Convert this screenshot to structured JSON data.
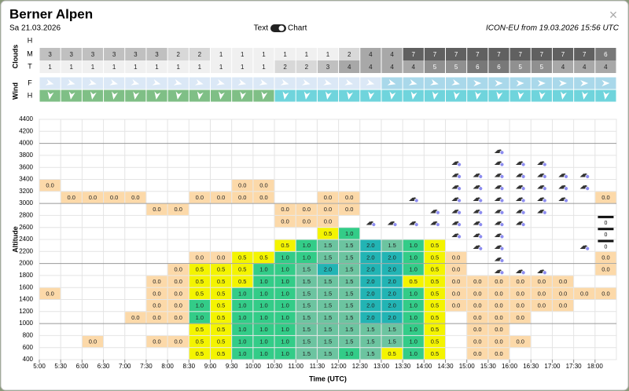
{
  "header": {
    "title": "Berner Alpen",
    "date": "Sa 21.03.2026",
    "toggle_left": "Text",
    "toggle_right": "Chart",
    "model": "ICON-EU from 19.03.2026 15:56 UTC",
    "close": "×"
  },
  "clouds": {
    "label": "Clouds",
    "rows": [
      {
        "name": "H"
      },
      {
        "name": "M",
        "values": [
          3,
          3,
          3,
          3,
          3,
          3,
          2,
          2,
          1,
          1,
          1,
          1,
          1,
          1,
          2,
          4,
          4,
          7,
          7,
          7,
          7,
          7,
          7,
          7,
          7,
          7,
          6
        ]
      },
      {
        "name": "T",
        "values": [
          1,
          1,
          1,
          1,
          1,
          1,
          1,
          1,
          1,
          1,
          1,
          2,
          2,
          3,
          4,
          4,
          4,
          4,
          5,
          5,
          6,
          6,
          5,
          5,
          4,
          4,
          4
        ]
      }
    ]
  },
  "wind": {
    "label": "Wind",
    "rows": [
      {
        "name": "F"
      },
      {
        "name": "H"
      }
    ]
  },
  "chart": {
    "type": "heatmap",
    "y_label": "Altitude",
    "x_label": "Time (UTC)",
    "yticks": [
      400,
      600,
      800,
      1000,
      1200,
      1400,
      1600,
      1800,
      2000,
      2200,
      2400,
      2600,
      2800,
      3000,
      3200,
      3400,
      3600,
      3800,
      4000,
      4200,
      4400
    ],
    "xticks": [
      "5:00",
      "5:30",
      "6:00",
      "6:30",
      "7:00",
      "7:30",
      "8:00",
      "8:30",
      "9:00",
      "9:30",
      "10:00",
      "10:30",
      "11:00",
      "11:30",
      "12:00",
      "12:30",
      "13:00",
      "13:30",
      "14:00",
      "14:30",
      "15:00",
      "15:30",
      "16:00",
      "16:30",
      "17:00",
      "17:30",
      "18:00"
    ],
    "cell_colors": [
      "#fcd9a9",
      "#f4f400",
      "#33cc88",
      "#6cc4a0",
      "#22b4b4"
    ],
    "rows": [
      [
        null,
        null,
        null,
        null,
        null,
        null,
        null,
        "0.5",
        "0.5",
        "1.0",
        "1.0",
        "1.0",
        "1.5",
        "1.5",
        "1.0",
        "1.5",
        "0.5",
        "1.0",
        "0.5",
        null,
        "0.0",
        "0.0",
        null,
        null,
        null,
        null,
        null
      ],
      [
        null,
        null,
        "0.0",
        null,
        null,
        "0.0",
        "0.0",
        "0.5",
        "0.5",
        "1.0",
        "1.0",
        "1.0",
        "1.5",
        "1.5",
        "1.5",
        "1.5",
        "1.5",
        "1.0",
        "0.5",
        null,
        "0.0",
        "0.0",
        "0.0",
        null,
        null,
        null,
        null
      ],
      [
        null,
        null,
        null,
        null,
        null,
        null,
        null,
        "0.5",
        "0.5",
        "1.0",
        "1.0",
        "1.0",
        "1.5",
        "1.5",
        "1.5",
        "1.5",
        "1.5",
        "1.0",
        "0.5",
        null,
        "0.0",
        "0.0",
        null,
        null,
        null,
        null,
        null
      ],
      [
        null,
        null,
        null,
        null,
        "0.0",
        "0.0",
        "0.0",
        "1.0",
        "0.5",
        "1.0",
        "1.0",
        "1.0",
        "1.5",
        "1.5",
        "1.5",
        "2.0",
        "2.0",
        "1.0",
        "0.5",
        null,
        "0.0",
        "0.0",
        "0.0",
        null,
        null,
        null,
        null
      ],
      [
        null,
        null,
        null,
        null,
        null,
        "0.0",
        "0.0",
        "1.0",
        "0.5",
        "1.0",
        "1.0",
        "1.0",
        "1.5",
        "1.5",
        "1.5",
        "2.0",
        "2.0",
        "1.0",
        "0.5",
        "0.0",
        "0.0",
        "0.0",
        "0.0",
        "0.0",
        "0.0",
        null,
        null
      ],
      [
        "0.0",
        null,
        null,
        null,
        null,
        "0.0",
        "0.0",
        "0.5",
        "0.5",
        "1.0",
        "1.0",
        "1.0",
        "1.5",
        "1.5",
        "1.5",
        "2.0",
        "2.0",
        "1.0",
        "0.5",
        "0.0",
        "0.0",
        "0.0",
        "0.0",
        "0.0",
        "0.0",
        "0.0",
        "0.0"
      ],
      [
        null,
        null,
        null,
        null,
        null,
        "0.0",
        "0.0",
        "0.5",
        "0.5",
        "0.5",
        "1.0",
        "1.0",
        "1.5",
        "1.5",
        "1.5",
        "2.0",
        "2.0",
        "0.5",
        "0.5",
        "0.0",
        "0.0",
        "0.0",
        "0.0",
        "0.0",
        "0.0",
        null,
        null
      ],
      [
        null,
        null,
        null,
        null,
        null,
        null,
        "0.0",
        "0.5",
        "0.5",
        "0.5",
        "1.0",
        "1.0",
        "1.5",
        "2.0",
        "1.5",
        "2.0",
        "2.0",
        "1.0",
        "0.5",
        "0.0",
        null,
        "☁",
        "☁",
        "☁",
        null,
        null,
        "0.0"
      ],
      [
        null,
        null,
        null,
        null,
        null,
        null,
        null,
        "0.0",
        "0.0",
        "0.5",
        "0.5",
        "1.0",
        "1.0",
        "1.5",
        "1.5",
        "2.0",
        "2.0",
        "1.0",
        "0.5",
        "0.0",
        null,
        "☁",
        null,
        null,
        null,
        null,
        "0.0"
      ],
      [
        null,
        null,
        null,
        null,
        null,
        null,
        null,
        null,
        null,
        null,
        null,
        "0.5",
        "1.0",
        "1.5",
        "1.5",
        "2.0",
        "1.5",
        "1.0",
        "0.5",
        null,
        "☁",
        "☁",
        null,
        null,
        null,
        "☁",
        "0"
      ],
      [
        null,
        null,
        null,
        null,
        null,
        null,
        null,
        null,
        null,
        null,
        null,
        null,
        null,
        "0.5",
        "1.0",
        null,
        null,
        null,
        null,
        "☁",
        "☁",
        "☁",
        null,
        null,
        null,
        null,
        "0"
      ],
      [
        null,
        null,
        null,
        null,
        null,
        null,
        null,
        null,
        null,
        null,
        null,
        "0.0",
        "0.0",
        "0.0",
        null,
        "☁",
        "☁",
        "☁",
        "☁",
        "☁",
        "☁",
        "☁",
        "☁",
        null,
        null,
        null,
        "0"
      ],
      [
        null,
        null,
        null,
        null,
        null,
        "0.0",
        "0.0",
        null,
        null,
        null,
        null,
        "0.0",
        "0.0",
        "0.0",
        "0.0",
        null,
        null,
        null,
        "☁",
        "☁",
        "☁",
        "☁",
        "☁",
        "☁",
        null,
        null,
        null
      ],
      [
        null,
        "0.0",
        "0.0",
        "0.0",
        "0.0",
        null,
        null,
        "0.0",
        "0.0",
        "0.0",
        "0.0",
        null,
        null,
        "0.0",
        "0.0",
        null,
        null,
        "☁",
        null,
        "☁",
        "☁",
        "☁",
        "☁",
        "☁",
        "☁",
        null,
        "0.0"
      ],
      [
        "0.0",
        null,
        null,
        null,
        null,
        null,
        null,
        null,
        null,
        "0.0",
        "0.0",
        null,
        null,
        null,
        null,
        null,
        null,
        null,
        null,
        "☁",
        "☁",
        "☁",
        "☁",
        "☁",
        "☁",
        "☁",
        null
      ],
      [
        null,
        null,
        null,
        null,
        null,
        null,
        null,
        null,
        null,
        null,
        null,
        null,
        null,
        null,
        null,
        null,
        null,
        null,
        null,
        "☁",
        "☁",
        "☁",
        "☁",
        "☁",
        "☁",
        "☁",
        null
      ],
      [
        null,
        null,
        null,
        null,
        null,
        null,
        null,
        null,
        null,
        null,
        null,
        null,
        null,
        null,
        null,
        null,
        null,
        null,
        null,
        "☁",
        null,
        "☁",
        "☁",
        "☁",
        null,
        null,
        null
      ],
      [
        null,
        null,
        null,
        null,
        null,
        null,
        null,
        null,
        null,
        null,
        null,
        null,
        null,
        null,
        null,
        null,
        null,
        null,
        null,
        null,
        null,
        "☁",
        null,
        null,
        null,
        null,
        null
      ]
    ]
  }
}
